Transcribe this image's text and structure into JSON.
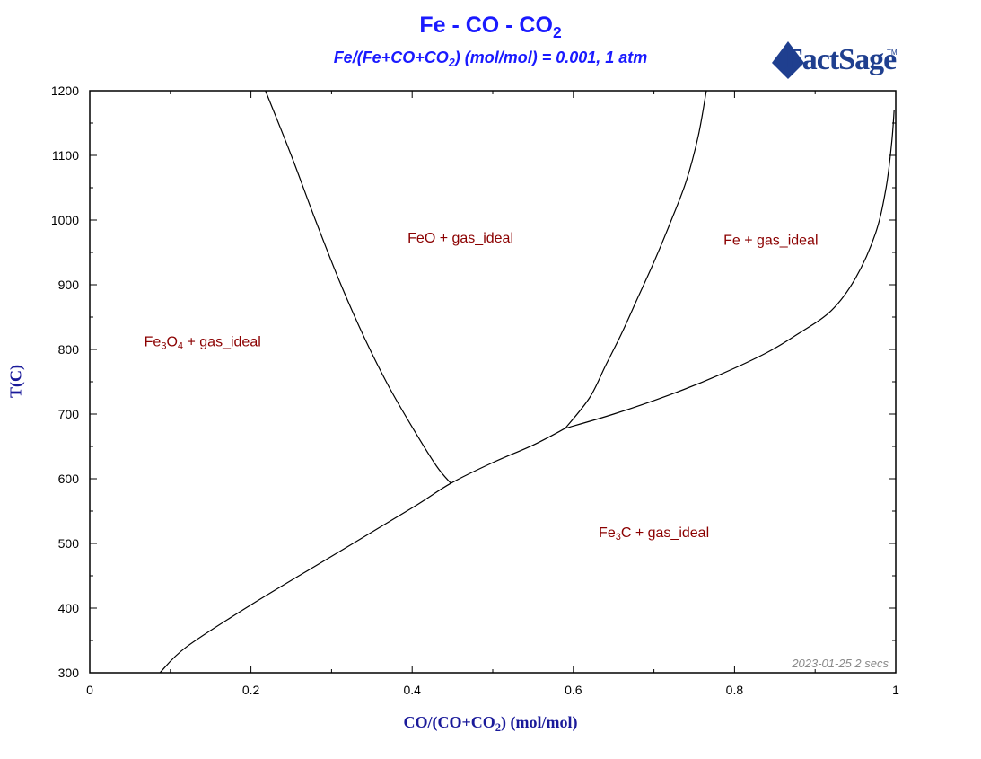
{
  "chart_data": {
    "type": "line",
    "title": "Fe - CO - CO2",
    "title_parts": {
      "main": "Fe - CO - CO",
      "sub": "2"
    },
    "subtitle_parts": {
      "a": "Fe/(Fe+CO+CO",
      "sub": "2",
      "b": ") (mol/mol) = 0.001, 1 atm"
    },
    "xlabel_parts": {
      "a": "CO/(CO+CO",
      "sub": "2",
      "b": ") (mol/mol)"
    },
    "ylabel": "T(C)",
    "xlim": [
      0,
      1
    ],
    "ylim": [
      300,
      1200
    ],
    "xticks": [
      0,
      0.2,
      0.4,
      0.6,
      0.8,
      1
    ],
    "xtick_labels": [
      "0",
      "0.2",
      "0.4",
      "0.6",
      "0.8",
      "1"
    ],
    "yticks": [
      300,
      400,
      500,
      600,
      700,
      800,
      900,
      1000,
      1100,
      1200
    ],
    "ytick_labels": [
      "300",
      "400",
      "500",
      "600",
      "700",
      "800",
      "900",
      "1000",
      "1100",
      "1200"
    ],
    "series": [
      {
        "x": [
          0.218,
          0.25,
          0.28,
          0.31,
          0.34,
          0.37,
          0.4,
          0.43,
          0.448
        ],
        "y": [
          1200,
          1100,
          1000,
          905,
          820,
          745,
          680,
          620,
          593
        ]
      },
      {
        "x": [
          0.765,
          0.755,
          0.74,
          0.72,
          0.7,
          0.68,
          0.66,
          0.64,
          0.62,
          0.59
        ],
        "y": [
          1200,
          1130,
          1060,
          995,
          935,
          880,
          825,
          775,
          725,
          678
        ]
      },
      {
        "x": [
          0.59,
          0.65,
          0.72,
          0.78,
          0.84,
          0.88,
          0.92,
          0.95,
          0.975,
          0.988,
          0.995,
          0.998
        ],
        "y": [
          678,
          700,
          730,
          760,
          795,
          825,
          860,
          910,
          980,
          1050,
          1120,
          1170
        ]
      },
      {
        "x": [
          0.087,
          0.12,
          0.2,
          0.3,
          0.4,
          0.448,
          0.5,
          0.55,
          0.59
        ],
        "y": [
          300,
          340,
          405,
          480,
          555,
          593,
          625,
          652,
          678
        ]
      }
    ],
    "annotations": [
      {
        "id": "feo",
        "text": "FeO + gas_ideal",
        "x": 0.46,
        "y": 965
      },
      {
        "id": "fe",
        "text": "Fe + gas_ideal",
        "x": 0.845,
        "y": 962
      },
      {
        "id": "fe3c",
        "text": "Fe3C + gas_ideal",
        "parts": [
          "Fe",
          "3",
          "C + gas_ideal"
        ],
        "x": 0.7,
        "y": 510
      },
      {
        "id": "fe3o4",
        "text": "Fe3O4 + gas_ideal",
        "parts": [
          "Fe",
          "3",
          "O",
          "4",
          " + gas_ideal"
        ],
        "x": 0.14,
        "y": 805
      }
    ],
    "footnote": "2023-01-25  2 secs"
  },
  "logo": {
    "text": "FactSage",
    "tm": "TM"
  }
}
